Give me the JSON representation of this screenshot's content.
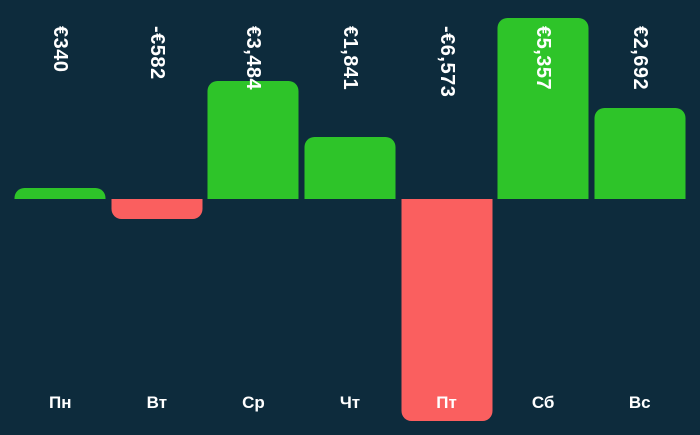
{
  "chart_data": {
    "type": "bar",
    "title": "",
    "xlabel": "",
    "ylabel": "",
    "grid": false,
    "legend": false,
    "currency": "€",
    "categories": [
      "Пн",
      "Вт",
      "Ср",
      "Чт",
      "Пт",
      "Сб",
      "Вс"
    ],
    "values": [
      340,
      -582,
      3484,
      1841,
      -6573,
      5357,
      2692
    ],
    "value_labels": [
      "€340",
      "-€582",
      "€3,484",
      "€1,841",
      "-€6,573",
      "€5,357",
      "€2,692"
    ],
    "colors": {
      "background": "#0d2b3c",
      "positive": "#2ec429",
      "negative": "#fa5f5f",
      "text": "#ffffff"
    }
  }
}
